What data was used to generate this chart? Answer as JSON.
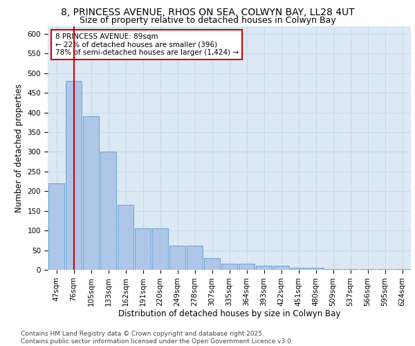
{
  "title_line1": "8, PRINCESS AVENUE, RHOS ON SEA, COLWYN BAY, LL28 4UT",
  "title_line2": "Size of property relative to detached houses in Colwyn Bay",
  "xlabel": "Distribution of detached houses by size in Colwyn Bay",
  "ylabel": "Number of detached properties",
  "categories": [
    "47sqm",
    "76sqm",
    "105sqm",
    "133sqm",
    "162sqm",
    "191sqm",
    "220sqm",
    "249sqm",
    "278sqm",
    "307sqm",
    "335sqm",
    "364sqm",
    "393sqm",
    "422sqm",
    "451sqm",
    "480sqm",
    "509sqm",
    "537sqm",
    "566sqm",
    "595sqm",
    "624sqm"
  ],
  "values": [
    220,
    480,
    390,
    300,
    165,
    105,
    105,
    62,
    62,
    30,
    15,
    15,
    10,
    10,
    5,
    5,
    2,
    2,
    2,
    2,
    2
  ],
  "bar_color": "#aec6e8",
  "bar_edge_color": "#5599cc",
  "grid_color": "#c8d8e8",
  "background_color": "#dce9f5",
  "vline_x": 1,
  "vline_color": "#cc0000",
  "annotation_text": "8 PRINCESS AVENUE: 89sqm\n← 22% of detached houses are smaller (396)\n78% of semi-detached houses are larger (1,424) →",
  "annotation_box_color": "#cc0000",
  "footnote": "Contains HM Land Registry data © Crown copyright and database right 2025.\nContains public sector information licensed under the Open Government Licence v3.0.",
  "ylim": [
    0,
    620
  ],
  "yticks": [
    0,
    50,
    100,
    150,
    200,
    250,
    300,
    350,
    400,
    450,
    500,
    550,
    600
  ],
  "title_fontsize": 10,
  "subtitle_fontsize": 9,
  "axis_label_fontsize": 8.5,
  "tick_fontsize": 7.5,
  "annotation_fontsize": 7.5,
  "footnote_fontsize": 6.5
}
